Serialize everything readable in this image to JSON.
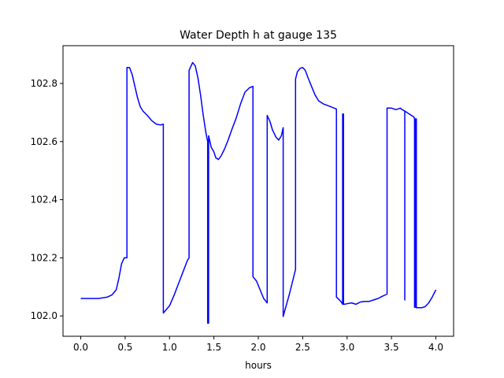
{
  "chart_data": {
    "type": "line",
    "title": "Water Depth h at gauge 135",
    "xlabel": "hours",
    "ylabel": "",
    "xlim": [
      -0.2,
      4.2
    ],
    "ylim": [
      101.93,
      102.93
    ],
    "x_ticks": [
      0.0,
      0.5,
      1.0,
      1.5,
      2.0,
      2.5,
      3.0,
      3.5,
      4.0
    ],
    "x_tick_labels": [
      "0.0",
      "0.5",
      "1.0",
      "1.5",
      "2.0",
      "2.5",
      "3.0",
      "3.5",
      "4.0"
    ],
    "y_ticks": [
      102.0,
      102.2,
      102.4,
      102.6,
      102.8
    ],
    "y_tick_labels": [
      "102.0",
      "102.2",
      "102.4",
      "102.6",
      "102.8"
    ],
    "grid": false,
    "series": [
      {
        "color": "#0000ff",
        "x": [
          0.0,
          0.2,
          0.3,
          0.35,
          0.4,
          0.43,
          0.46,
          0.49,
          0.52,
          0.52,
          0.55,
          0.58,
          0.61,
          0.64,
          0.67,
          0.7,
          0.75,
          0.8,
          0.85,
          0.9,
          0.93,
          0.93,
          1.0,
          1.05,
          1.1,
          1.15,
          1.2,
          1.22,
          1.22,
          1.26,
          1.29,
          1.32,
          1.35,
          1.38,
          1.41,
          1.43,
          1.43,
          1.44,
          1.44,
          1.47,
          1.5,
          1.52,
          1.55,
          1.58,
          1.62,
          1.66,
          1.7,
          1.75,
          1.8,
          1.85,
          1.9,
          1.94,
          1.94,
          1.98,
          2.02,
          2.06,
          2.1,
          2.1,
          2.13,
          2.16,
          2.2,
          2.23,
          2.26,
          2.28,
          2.28,
          2.3,
          2.35,
          2.42,
          2.42,
          2.44,
          2.47,
          2.5,
          2.53,
          2.56,
          2.6,
          2.64,
          2.68,
          2.73,
          2.8,
          2.88,
          2.88,
          2.93,
          2.95,
          2.95,
          2.96,
          2.96,
          2.97,
          3.0,
          3.05,
          3.1,
          3.15,
          3.2,
          3.25,
          3.3,
          3.35,
          3.4,
          3.45,
          3.45,
          3.5,
          3.55,
          3.6,
          3.62,
          3.65,
          3.65,
          3.65,
          3.7,
          3.75,
          3.76,
          3.76,
          3.77,
          3.77,
          3.78,
          3.78,
          3.8,
          3.84,
          3.88,
          3.92,
          3.96,
          4.0
        ],
        "y": [
          102.06,
          102.06,
          102.065,
          102.072,
          102.09,
          102.13,
          102.18,
          102.2,
          102.2,
          102.855,
          102.855,
          102.83,
          102.79,
          102.75,
          102.72,
          102.705,
          102.69,
          102.672,
          102.66,
          102.657,
          102.66,
          102.01,
          102.035,
          102.07,
          102.11,
          102.15,
          102.19,
          102.2,
          102.845,
          102.872,
          102.86,
          102.82,
          102.76,
          102.69,
          102.63,
          102.6,
          101.975,
          101.975,
          102.62,
          102.58,
          102.565,
          102.545,
          102.538,
          102.55,
          102.575,
          102.605,
          102.64,
          102.68,
          102.73,
          102.77,
          102.785,
          102.79,
          102.135,
          102.12,
          102.09,
          102.06,
          102.045,
          102.69,
          102.67,
          102.64,
          102.615,
          102.605,
          102.62,
          102.648,
          101.998,
          102.02,
          102.075,
          102.16,
          102.815,
          102.84,
          102.852,
          102.855,
          102.845,
          102.82,
          102.79,
          102.76,
          102.74,
          102.73,
          102.722,
          102.712,
          102.065,
          102.05,
          102.04,
          102.695,
          102.695,
          102.04,
          102.04,
          102.042,
          102.045,
          102.04,
          102.048,
          102.05,
          102.05,
          102.055,
          102.06,
          102.068,
          102.075,
          102.715,
          102.715,
          102.71,
          102.715,
          102.71,
          102.705,
          102.055,
          102.705,
          102.695,
          102.685,
          102.68,
          102.03,
          102.03,
          102.678,
          102.678,
          102.028,
          102.028,
          102.028,
          102.032,
          102.045,
          102.065,
          102.09
        ]
      }
    ]
  }
}
